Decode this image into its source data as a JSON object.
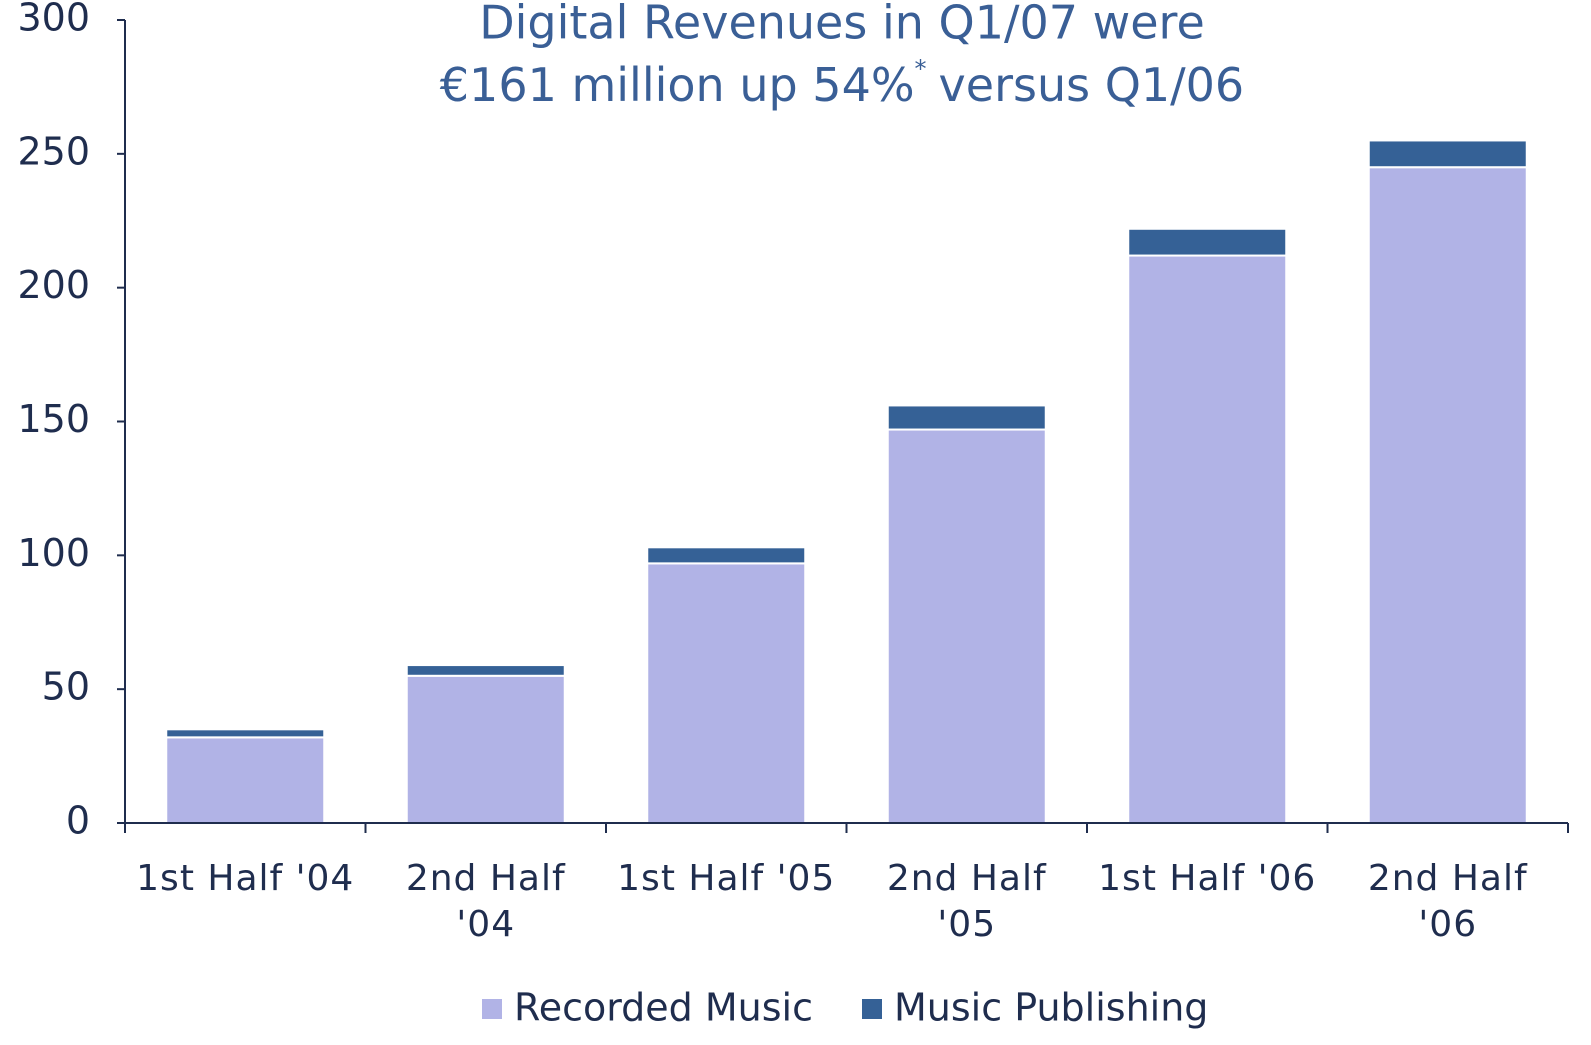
{
  "chart_data": {
    "type": "stacked-bar",
    "title": [
      "Digital Revenues in Q1/07 were",
      "€161 million up 54%",
      "*",
      "versus Q1/06"
    ],
    "categories": [
      [
        "1st Half '04"
      ],
      [
        "2nd Half",
        "'04"
      ],
      [
        "1st Half '05"
      ],
      [
        "2nd Half",
        "'05"
      ],
      [
        "1st Half '06"
      ],
      [
        "2nd Half",
        "'06"
      ]
    ],
    "series": [
      {
        "name": "Recorded Music",
        "color": "#b1b3e6",
        "values": [
          32,
          55,
          97,
          147,
          212,
          245
        ]
      },
      {
        "name": "Music Publishing",
        "color": "#356196",
        "values": [
          3,
          4,
          6,
          9,
          10,
          10
        ]
      }
    ],
    "ylim": [
      0,
      300
    ],
    "yticks": [
      0,
      50,
      100,
      150,
      200,
      250,
      300
    ],
    "grid": false,
    "legend": "bottom"
  }
}
